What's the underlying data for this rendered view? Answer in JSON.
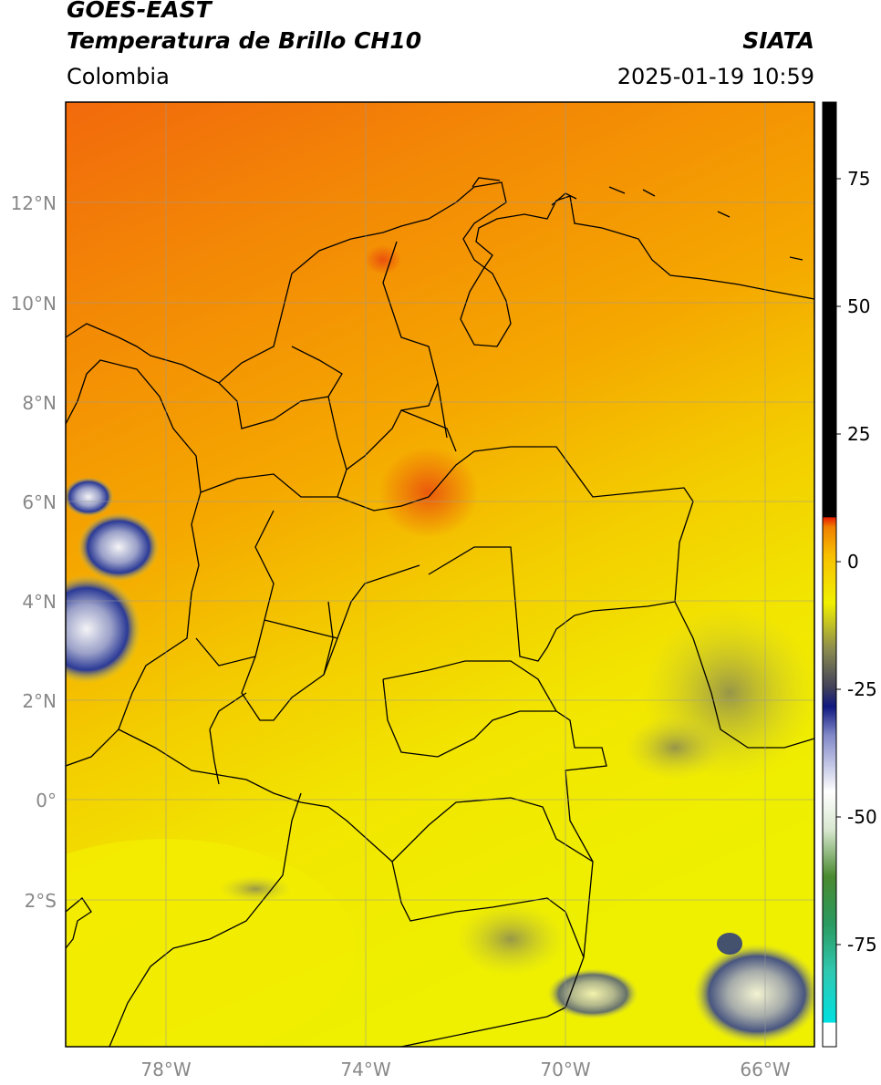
{
  "header": {
    "satellite": "GOES-EAST",
    "product": "Temperatura de Brillo CH10",
    "region": "Colombia",
    "organization": "SIATA",
    "timestamp": "2025-01-19 10:59"
  },
  "map": {
    "lon_range": [
      -80,
      -65
    ],
    "lat_range": [
      -5,
      14
    ],
    "lat_ticks": [
      {
        "value": 12,
        "label": "12°N"
      },
      {
        "value": 10,
        "label": "10°N"
      },
      {
        "value": 8,
        "label": "8°N"
      },
      {
        "value": 6,
        "label": "6°N"
      },
      {
        "value": 4,
        "label": "4°N"
      },
      {
        "value": 2,
        "label": "2°N"
      },
      {
        "value": 0,
        "label": "0°"
      },
      {
        "value": -2,
        "label": "2°S"
      }
    ],
    "lon_ticks": [
      {
        "value": -78,
        "label": "78°W"
      },
      {
        "value": -74,
        "label": "74°W"
      },
      {
        "value": -70,
        "label": "70°W"
      },
      {
        "value": -66,
        "label": "66°W"
      }
    ],
    "gridlines": true,
    "colors": {
      "warm_orange": "#f26f0f",
      "orange": "#f5a000",
      "yellow": "#f2ee00",
      "cold_blue": "#1a2a8a",
      "border": "#000000"
    }
  },
  "colorbar": {
    "range": [
      -95,
      90
    ],
    "ticks": [
      {
        "value": 75,
        "label": "75"
      },
      {
        "value": 50,
        "label": "50"
      },
      {
        "value": 25,
        "label": "25"
      },
      {
        "value": 0,
        "label": "0"
      },
      {
        "value": -25,
        "label": "-25"
      },
      {
        "value": -50,
        "label": "-50"
      },
      {
        "value": -75,
        "label": "-75"
      }
    ]
  }
}
